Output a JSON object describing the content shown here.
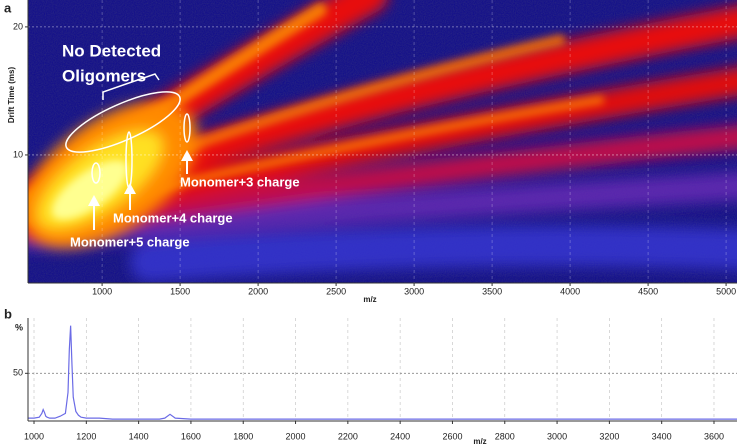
{
  "chart_data": [
    {
      "type": "heatmap",
      "panel_label": "a",
      "x_label": "m/z",
      "y_label": "Drift Time (ms)",
      "xlim": [
        525,
        5070
      ],
      "xticks": [
        1000,
        1500,
        2000,
        2500,
        3000,
        3500,
        4000,
        4500,
        5000
      ],
      "ylim": [
        0,
        22.1
      ],
      "yticks": [
        10,
        20
      ],
      "grid": true,
      "annotations": [
        "No Detected",
        "Oligomers",
        "Monomer+3 charge",
        "Monomer+4 charge",
        "Monomer+5 charge"
      ]
    },
    {
      "type": "line",
      "panel_label": "b",
      "x_label": "m/z",
      "y_label": "%",
      "xlim": [
        977,
        3688
      ],
      "xticks": [
        1000,
        1200,
        1400,
        1600,
        1800,
        2000,
        2200,
        2400,
        2600,
        2800,
        3000,
        3200,
        3400,
        3600
      ],
      "ylim": [
        0,
        108
      ],
      "yticks": [
        50
      ],
      "grid": true,
      "color": "#6b6be6",
      "x": [
        977,
        1000,
        1020,
        1030,
        1035,
        1040,
        1045,
        1050,
        1060,
        1080,
        1100,
        1120,
        1130,
        1135,
        1140,
        1145,
        1150,
        1160,
        1170,
        1180,
        1200,
        1250,
        1300,
        1400,
        1480,
        1500,
        1520,
        1540,
        1600,
        1800,
        2000,
        2500,
        3000,
        3500,
        3688
      ],
      "values": [
        3,
        3,
        4,
        8,
        12,
        9,
        5,
        4,
        3,
        3,
        5,
        8,
        30,
        75,
        100,
        60,
        25,
        10,
        6,
        4,
        3,
        3,
        2,
        2,
        2,
        3,
        7,
        3,
        2,
        2,
        2,
        2,
        2,
        2,
        2
      ]
    }
  ]
}
